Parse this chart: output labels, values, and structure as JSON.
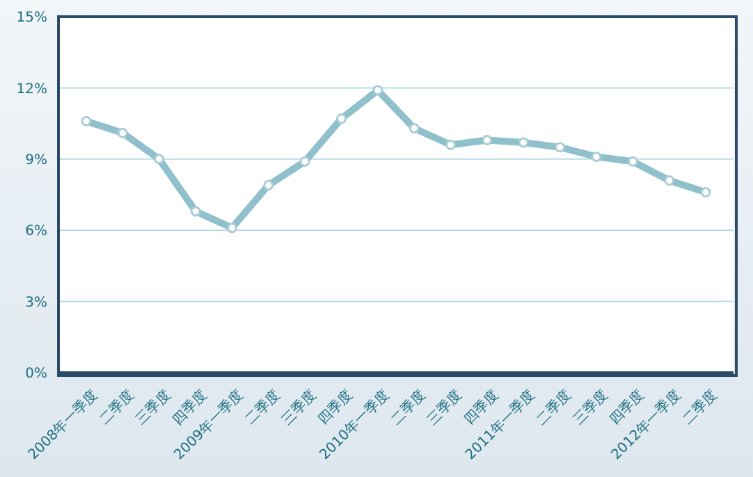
{
  "chart_data": {
    "type": "line",
    "categories": [
      "2008年一季度",
      "二季度",
      "三季度",
      "四季度",
      "2009年一季度",
      "二季度",
      "三季度",
      "四季度",
      "2010年一季度",
      "二季度",
      "三季度",
      "四季度",
      "2011年一季度",
      "二季度",
      "三季度",
      "四季度",
      "2012年一季度",
      "二季度"
    ],
    "series": [
      {
        "color": "#8fc0cb",
        "values": [
          10.6,
          10.1,
          9.0,
          6.8,
          6.1,
          7.9,
          8.9,
          10.7,
          11.9,
          10.3,
          9.6,
          9.8,
          9.7,
          9.5,
          9.1,
          8.9,
          8.1,
          7.6
        ]
      }
    ],
    "ylim": [
      0,
      15
    ],
    "yticks": [
      {
        "value": 0,
        "label": "0%"
      },
      {
        "value": 3,
        "label": "3%"
      },
      {
        "value": 6,
        "label": "6%"
      },
      {
        "value": 9,
        "label": "9%"
      },
      {
        "value": 12,
        "label": "12%"
      },
      {
        "value": 15,
        "label": "15%"
      }
    ],
    "grid": "y",
    "legend": false,
    "marker": "circle",
    "line_style": "solid"
  }
}
